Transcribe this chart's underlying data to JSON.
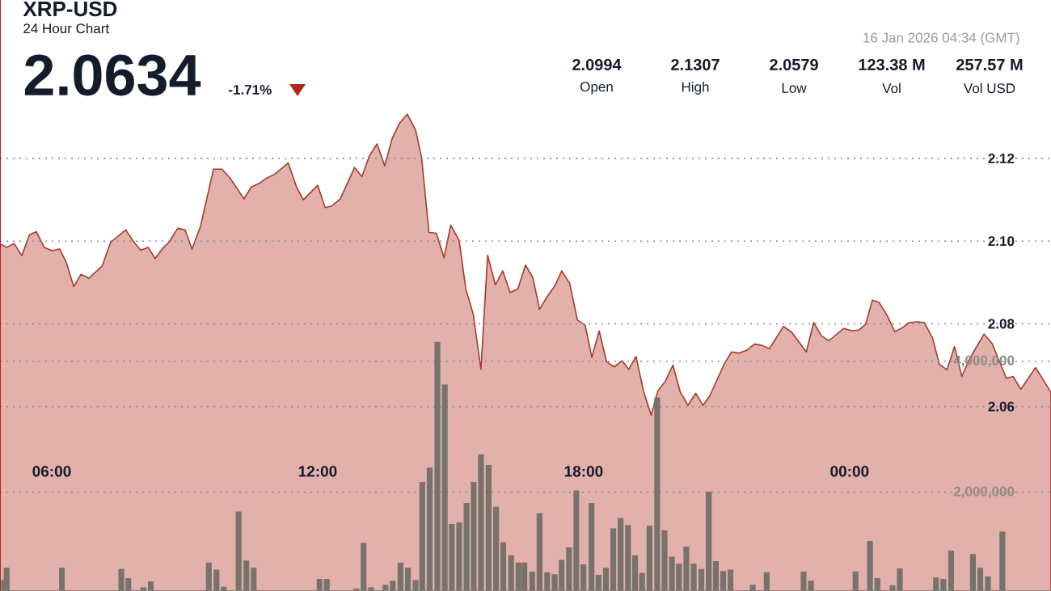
{
  "chart_data": {
    "type": "area",
    "title": "XRP-USD",
    "subtitle": "24 Hour Chart",
    "annotations": [
      "2.0634",
      "-1.71%",
      "16 Jan 2026 04:34 (GMT)",
      "2.0994",
      "Open",
      "2.1307",
      "High",
      "2.0579",
      "Low",
      "123.38 M",
      "Vol",
      "257.57 M",
      "Vol USD"
    ],
    "xlim": [
      4.833,
      28.545
    ],
    "xticks": [
      {
        "value": 6,
        "label": "06:00"
      },
      {
        "value": 12,
        "label": "12:00"
      },
      {
        "value": 18,
        "label": "18:00"
      },
      {
        "value": 24,
        "label": "00:00"
      }
    ],
    "ylim": [
      2.0154,
      2.1583
    ],
    "yticks": [
      {
        "value": 2.06,
        "label": "2.06"
      },
      {
        "value": 2.08,
        "label": "2.08"
      },
      {
        "value": 2.1,
        "label": "2.10"
      },
      {
        "value": 2.12,
        "label": "2.12"
      }
    ],
    "y2lim": [
      494000,
      9520000
    ],
    "y2ticks": [
      {
        "value": 2000000,
        "label": "2,000,000"
      },
      {
        "value": 4000000,
        "label": "4,000,000"
      }
    ],
    "grid": "y",
    "series": [
      {
        "color": "#e3b1ab",
        "x": [
          4.833,
          4.984,
          5.151,
          5.325,
          5.498,
          5.65,
          5.831,
          6.005,
          6.179,
          6.33,
          6.497,
          6.663,
          6.837,
          7.139,
          7.328,
          7.669,
          7.858,
          8.009,
          8.175,
          8.334,
          8.5,
          8.652,
          8.841,
          9.007,
          9.166,
          9.355,
          9.65,
          9.839,
          10.013,
          10.338,
          10.504,
          10.693,
          10.844,
          11.033,
          11.336,
          11.525,
          11.676,
          12.001,
          12.168,
          12.319,
          12.508,
          12.833,
          12.999,
          13.166,
          13.34,
          13.513,
          13.68,
          13.846,
          14.02,
          14.209,
          14.345,
          14.511,
          14.678,
          14.852,
          15.003,
          15.192,
          15.343,
          15.51,
          15.684,
          15.835,
          16.009,
          16.175,
          16.341,
          16.516,
          16.688,
          16.854,
          17.006,
          17.179,
          17.353,
          17.505,
          17.686,
          17.86,
          18.034,
          18.185,
          18.352,
          18.518,
          18.692,
          18.866,
          19.017,
          19.183,
          19.35,
          19.524,
          19.675,
          19.849,
          20.015,
          20.181,
          20.355,
          20.529,
          20.695,
          20.847,
          21.187,
          21.338,
          21.512,
          21.679,
          21.852,
          22.019,
          22.193,
          22.51,
          22.699,
          23.024,
          23.191,
          23.365,
          23.531,
          23.871,
          24.061,
          24.212,
          24.363,
          24.514,
          24.665,
          24.855,
          25.021,
          25.195,
          25.346,
          25.535,
          25.686,
          25.875,
          26.026,
          26.2,
          26.367,
          26.533,
          26.707,
          27.032,
          27.213,
          27.538,
          27.69,
          27.864,
          28.197,
          28.545
        ],
        "values": [
          2.0993,
          2.0985,
          2.0994,
          2.0965,
          2.1015,
          2.1023,
          2.0985,
          2.0977,
          2.0981,
          2.0948,
          2.089,
          2.092,
          2.091,
          2.094,
          2.0997,
          2.1027,
          2.0997,
          2.0978,
          2.0985,
          2.0958,
          2.0982,
          2.0998,
          2.1031,
          2.1027,
          2.0981,
          2.1035,
          2.1174,
          2.1174,
          2.1154,
          2.1102,
          2.1131,
          2.114,
          2.1152,
          2.1162,
          2.1189,
          2.113,
          2.11,
          2.1135,
          2.1081,
          2.1085,
          2.1102,
          2.1178,
          2.1156,
          2.1206,
          2.1235,
          2.1182,
          2.1248,
          2.1285,
          2.1307,
          2.1269,
          2.1202,
          2.1021,
          2.1019,
          2.096,
          2.1039,
          2.1001,
          2.0884,
          2.0823,
          2.069,
          2.0966,
          2.0894,
          2.0928,
          2.0876,
          2.0884,
          2.0942,
          2.0912,
          2.0835,
          2.0866,
          2.0892,
          2.0928,
          2.0898,
          2.0809,
          2.0797,
          2.0719,
          2.0783,
          2.0708,
          2.0696,
          2.0711,
          2.069,
          2.0721,
          2.0638,
          2.0579,
          2.0638,
          2.0662,
          2.07,
          2.0635,
          2.0603,
          2.0632,
          2.0603,
          2.0626,
          2.0706,
          2.0732,
          2.0729,
          2.0736,
          2.0751,
          2.0748,
          2.074,
          2.0794,
          2.0779,
          2.0732,
          2.0803,
          2.0771,
          2.0759,
          2.0789,
          2.0783,
          2.0785,
          2.0799,
          2.0857,
          2.0852,
          2.0819,
          2.0781,
          2.0791,
          2.0803,
          2.0805,
          2.0803,
          2.0765,
          2.0702,
          2.0689,
          2.0745,
          2.0673,
          2.0715,
          2.0775,
          2.0753,
          2.0668,
          2.0673,
          2.0642,
          2.0694,
          2.0634
        ]
      },
      {
        "type": "bar",
        "axis": "y2",
        "color": "#77736c",
        "x": [
          4.924,
          4.983,
          6.232,
          7.57,
          7.729,
          8.069,
          8.236,
          9.544,
          9.718,
          9.884,
          10.217,
          10.391,
          10.557,
          12.039,
          12.205,
          12.871,
          13.037,
          13.204,
          13.529,
          13.695,
          13.869,
          14.035,
          14.209,
          14.36,
          14.527,
          14.701,
          14.867,
          15.026,
          15.192,
          15.359,
          15.518,
          15.684,
          15.857,
          16.025,
          16.19,
          16.364,
          16.531,
          16.667,
          16.839,
          17.006,
          17.179,
          17.346,
          17.505,
          17.671,
          17.837,
          17.996,
          18.178,
          18.336,
          18.503,
          18.669,
          18.835,
          19.002,
          19.161,
          19.319,
          19.486,
          19.66,
          19.826,
          19.992,
          20.151,
          20.317,
          20.484,
          20.658,
          20.824,
          20.983,
          21.149,
          21.316,
          21.815,
          22.132,
          22.964,
          23.13,
          24.136,
          24.461,
          24.628,
          24.968,
          25.134,
          25.951,
          26.117,
          26.291,
          26.783,
          26.949,
          27.123,
          27.448
        ],
        "values": [
          660000,
          850000,
          850000,
          830000,
          690000,
          550000,
          640000,
          930000,
          820000,
          560000,
          1710000,
          960000,
          850000,
          680000,
          680000,
          530000,
          1230000,
          550000,
          590000,
          650000,
          930000,
          850000,
          660000,
          2160000,
          2380000,
          4300000,
          3650000,
          1520000,
          1540000,
          1840000,
          2160000,
          2580000,
          2420000,
          1780000,
          1240000,
          1040000,
          930000,
          930000,
          790000,
          1680000,
          780000,
          750000,
          970000,
          1160000,
          2030000,
          900000,
          1840000,
          740000,
          850000,
          1450000,
          1610000,
          1500000,
          1040000,
          770000,
          1490000,
          3450000,
          1420000,
          1020000,
          910000,
          1170000,
          910000,
          830000,
          2010000,
          950000,
          800000,
          820000,
          590000,
          780000,
          790000,
          650000,
          790000,
          1260000,
          690000,
          580000,
          840000,
          700000,
          680000,
          1110000,
          1060000,
          850000,
          720000,
          1400000
        ]
      }
    ]
  }
}
